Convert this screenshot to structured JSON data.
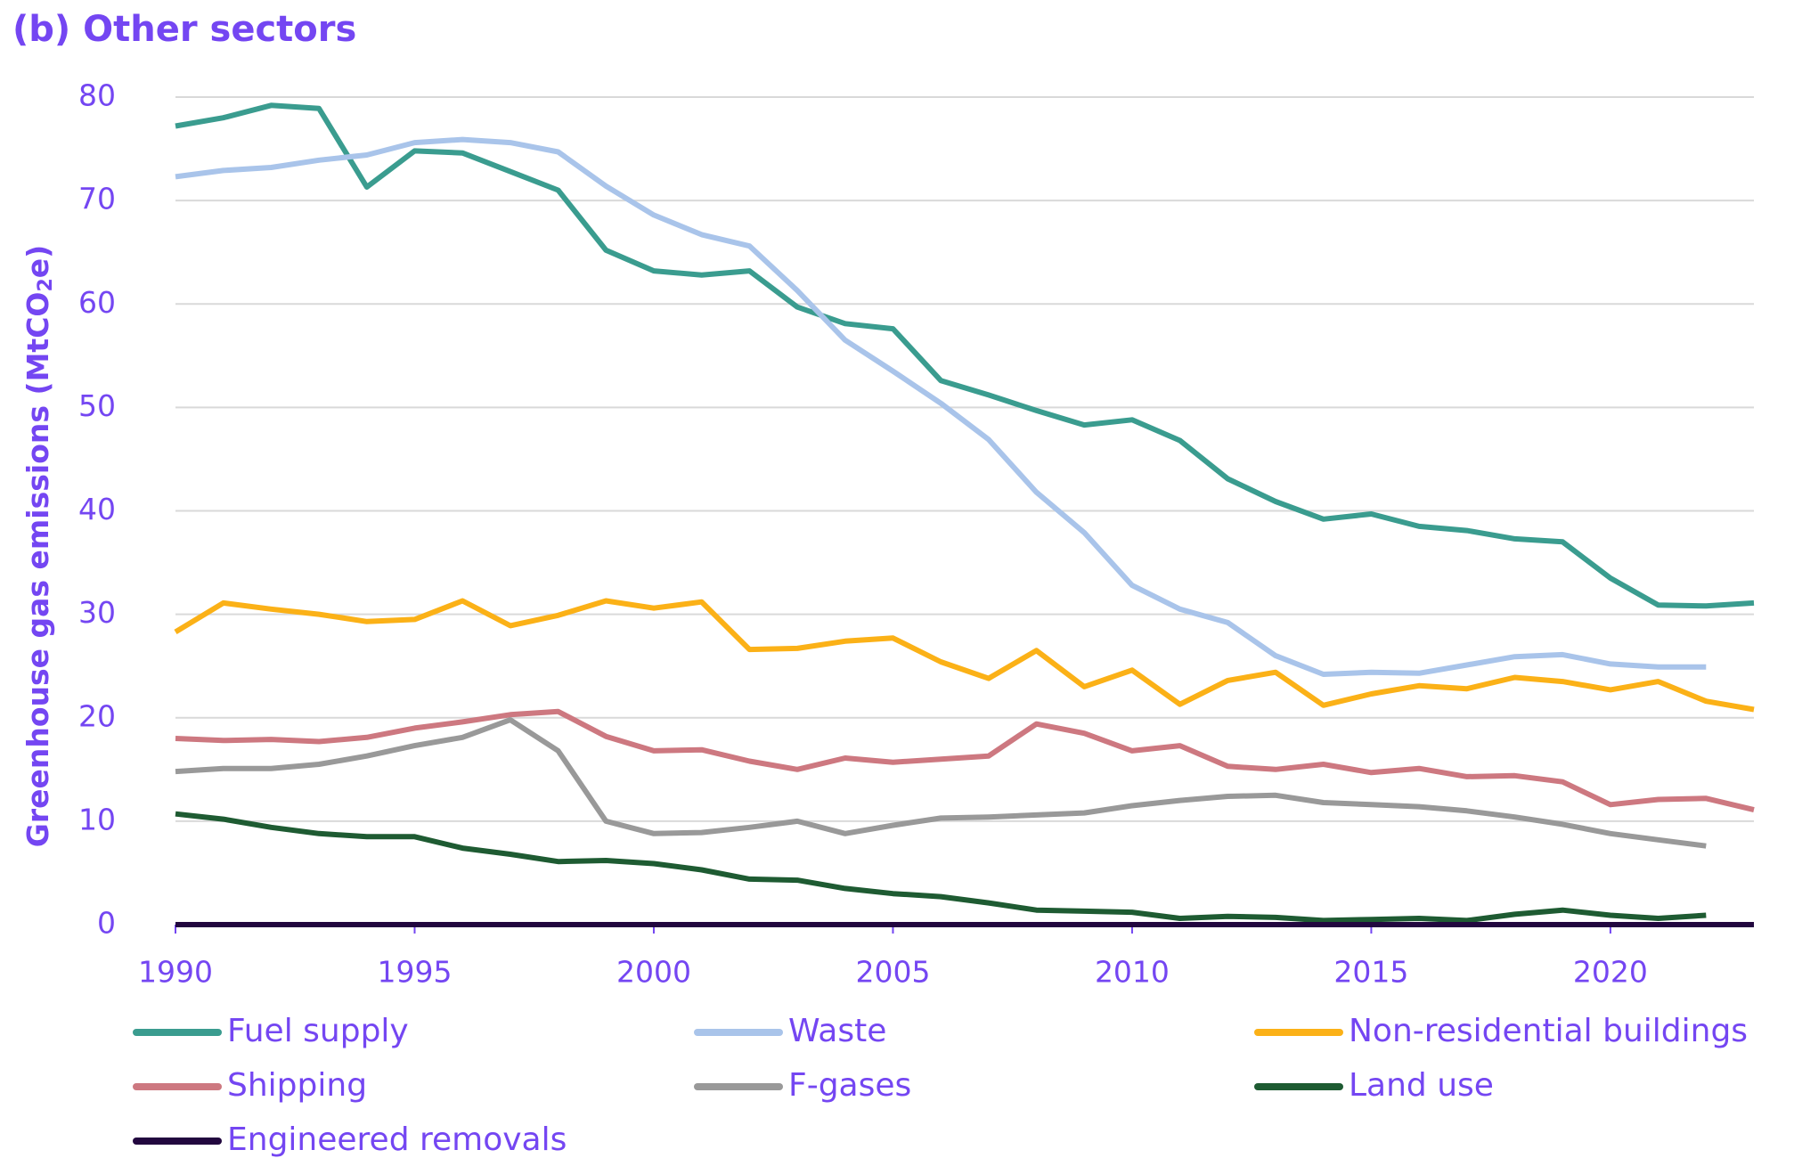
{
  "chart_data": {
    "type": "line",
    "title": "(b) Other sectors",
    "ylabel": "Greenhouse gas emissions (MtCO",
    "ylabel_sub": "2",
    "ylabel_tail": "e)",
    "ylim": [
      0,
      80
    ],
    "yticks": [
      0,
      10,
      20,
      30,
      40,
      50,
      60,
      70,
      80
    ],
    "xlim": [
      1990,
      2023
    ],
    "xticks": [
      1990,
      1995,
      2000,
      2005,
      2010,
      2015,
      2020
    ],
    "grid": true,
    "legend_position": "bottom",
    "colors": {
      "text": "#7446f2",
      "grid": "#d9d9d9",
      "axis": "#7446f2"
    },
    "series": [
      {
        "name": "Fuel supply",
        "color": "#3a9c8f",
        "start": 1990,
        "values": [
          77.2,
          78.0,
          79.2,
          78.9,
          71.3,
          74.8,
          74.6,
          72.8,
          71.0,
          65.2,
          63.2,
          62.8,
          63.2,
          59.7,
          58.1,
          57.6,
          52.6,
          51.2,
          49.7,
          48.3,
          48.8,
          46.8,
          43.1,
          40.9,
          39.2,
          39.7,
          38.5,
          38.1,
          37.3,
          37.0,
          33.5,
          30.9,
          30.8,
          31.1
        ]
      },
      {
        "name": "Waste",
        "color": "#a9c4ea",
        "start": 1990,
        "values": [
          72.3,
          72.9,
          73.2,
          73.9,
          74.4,
          75.6,
          75.9,
          75.6,
          74.7,
          71.4,
          68.6,
          66.7,
          65.6,
          61.3,
          56.5,
          53.5,
          50.4,
          46.9,
          41.8,
          37.9,
          32.8,
          30.5,
          29.2,
          26.0,
          24.2,
          24.4,
          24.3,
          25.1,
          25.9,
          26.1,
          25.2,
          24.9,
          24.9
        ]
      },
      {
        "name": "Non-residential buildings",
        "color": "#fbb117",
        "start": 1990,
        "values": [
          28.3,
          31.1,
          30.5,
          30.0,
          29.3,
          29.5,
          31.3,
          28.9,
          29.9,
          31.3,
          30.6,
          31.2,
          26.6,
          26.7,
          27.4,
          27.7,
          25.4,
          23.8,
          26.5,
          23.0,
          24.6,
          21.3,
          23.6,
          24.4,
          21.2,
          22.3,
          23.1,
          22.8,
          23.9,
          23.5,
          22.7,
          23.5,
          21.6,
          20.8
        ]
      },
      {
        "name": "Shipping",
        "color": "#cd7880",
        "start": 1990,
        "values": [
          18.0,
          17.8,
          17.9,
          17.7,
          18.1,
          19.0,
          19.6,
          20.3,
          20.6,
          18.2,
          16.8,
          16.9,
          15.8,
          15.0,
          16.1,
          15.7,
          16.0,
          16.3,
          19.4,
          18.5,
          16.8,
          17.3,
          15.3,
          15.0,
          15.5,
          14.7,
          15.1,
          14.3,
          14.4,
          13.8,
          11.6,
          12.1,
          12.2,
          11.1
        ]
      },
      {
        "name": "F-gases",
        "color": "#999999",
        "start": 1990,
        "values": [
          14.8,
          15.1,
          15.1,
          15.5,
          16.3,
          17.3,
          18.1,
          19.8,
          16.8,
          10.0,
          8.8,
          8.9,
          9.4,
          10.0,
          8.8,
          9.6,
          10.3,
          10.4,
          10.6,
          10.8,
          11.5,
          12.0,
          12.4,
          12.5,
          11.8,
          11.6,
          11.4,
          11.0,
          10.4,
          9.7,
          8.8,
          8.2,
          7.6
        ]
      },
      {
        "name": "Land use",
        "color": "#1e5b32",
        "start": 1990,
        "values": [
          10.7,
          10.2,
          9.4,
          8.8,
          8.5,
          8.5,
          7.4,
          6.8,
          6.1,
          6.2,
          5.9,
          5.3,
          4.4,
          4.3,
          3.5,
          3.0,
          2.7,
          2.1,
          1.4,
          1.3,
          1.2,
          0.6,
          0.8,
          0.7,
          0.4,
          0.5,
          0.6,
          0.4,
          1.0,
          1.4,
          0.9,
          0.6,
          0.9
        ]
      },
      {
        "name": "Engineered removals",
        "color": "#22073f",
        "start": 1990,
        "values": [
          0,
          0,
          0,
          0,
          0,
          0,
          0,
          0,
          0,
          0,
          0,
          0,
          0,
          0,
          0,
          0,
          0,
          0,
          0,
          0,
          0,
          0,
          0,
          0,
          0,
          0,
          0,
          0,
          0,
          0,
          0,
          0,
          0,
          0
        ]
      }
    ]
  }
}
